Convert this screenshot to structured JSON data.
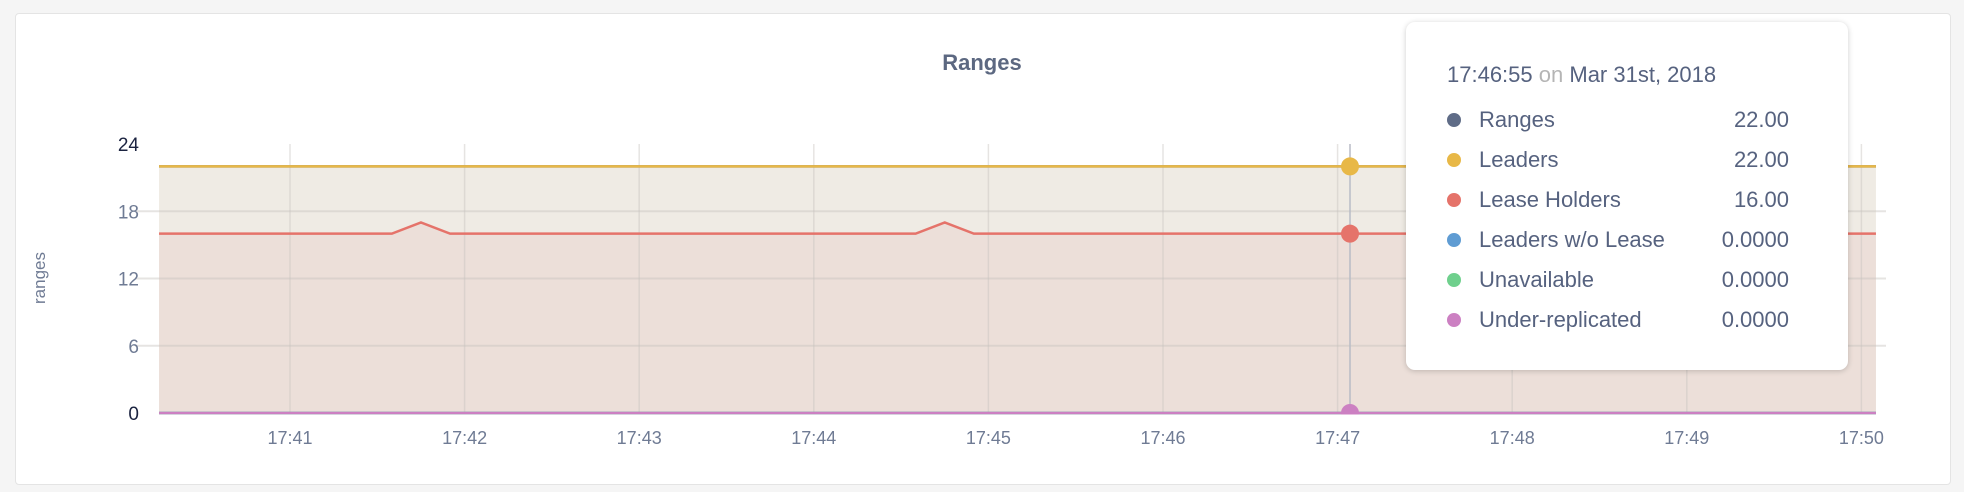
{
  "chart_data": {
    "type": "area",
    "title": "Ranges",
    "ylabel": "ranges",
    "xlabel": "",
    "ylim": [
      0,
      24
    ],
    "yticks": [
      "0",
      "6",
      "12",
      "18",
      "24"
    ],
    "xticks": [
      "17:41",
      "17:42",
      "17:43",
      "17:44",
      "17:45",
      "17:46",
      "17:47",
      "17:48",
      "17:49",
      "17:50"
    ],
    "grid": true,
    "x": [
      "17:40:15",
      "17:40:25",
      "17:40:35",
      "17:40:45",
      "17:40:55",
      "17:41:05",
      "17:41:15",
      "17:41:25",
      "17:41:35",
      "17:41:45",
      "17:41:55",
      "17:42:05",
      "17:42:15",
      "17:42:25",
      "17:42:35",
      "17:42:45",
      "17:42:55",
      "17:43:05",
      "17:43:15",
      "17:43:25",
      "17:43:35",
      "17:43:45",
      "17:43:55",
      "17:44:05",
      "17:44:15",
      "17:44:25",
      "17:44:35",
      "17:44:45",
      "17:44:55",
      "17:45:05",
      "17:45:15",
      "17:45:25",
      "17:45:35",
      "17:45:45",
      "17:45:55",
      "17:46:05",
      "17:46:15",
      "17:46:25",
      "17:46:35",
      "17:46:45",
      "17:46:55",
      "17:47:05",
      "17:47:15",
      "17:47:25",
      "17:47:35",
      "17:47:45",
      "17:47:55",
      "17:48:05",
      "17:48:15",
      "17:48:25",
      "17:48:35",
      "17:48:45",
      "17:48:55",
      "17:49:05",
      "17:49:15",
      "17:49:25",
      "17:49:35",
      "17:49:45",
      "17:49:55",
      "17:50:05"
    ],
    "series": [
      {
        "name": "Ranges",
        "color": "#5f6c87",
        "fill": false,
        "values": [
          22,
          22,
          22,
          22,
          22,
          22,
          22,
          22,
          22,
          22,
          22,
          22,
          22,
          22,
          22,
          22,
          22,
          22,
          22,
          22,
          22,
          22,
          22,
          22,
          22,
          22,
          22,
          22,
          22,
          22,
          22,
          22,
          22,
          22,
          22,
          22,
          22,
          22,
          22,
          22,
          22,
          22,
          22,
          22,
          22,
          22,
          22,
          22,
          22,
          22,
          22,
          22,
          22,
          22,
          22,
          22,
          22,
          22,
          22,
          22
        ]
      },
      {
        "name": "Leaders",
        "color": "#e8b847",
        "fill": "#efebe4",
        "values": [
          22,
          22,
          22,
          22,
          22,
          22,
          22,
          22,
          22,
          22,
          22,
          22,
          22,
          22,
          22,
          22,
          22,
          22,
          22,
          22,
          22,
          22,
          22,
          22,
          22,
          22,
          22,
          22,
          22,
          22,
          22,
          22,
          22,
          22,
          22,
          22,
          22,
          22,
          22,
          22,
          22,
          22,
          22,
          22,
          22,
          22,
          22,
          22,
          22,
          22,
          22,
          22,
          22,
          22,
          22,
          22,
          22,
          22,
          22,
          22
        ]
      },
      {
        "name": "Lease Holders",
        "color": "#e5736a",
        "fill": "#ecdfd9",
        "values": [
          16,
          16,
          16,
          16,
          16,
          16,
          16,
          16,
          16,
          17,
          16,
          16,
          16,
          16,
          16,
          16,
          16,
          16,
          16,
          16,
          16,
          16,
          16,
          16,
          16,
          16,
          16,
          17,
          16,
          16,
          16,
          16,
          16,
          16,
          16,
          16,
          16,
          16,
          16,
          16,
          16,
          16,
          16,
          16,
          16,
          16,
          16,
          16,
          16,
          16,
          16,
          16,
          16,
          16,
          16,
          16,
          16,
          17,
          16,
          16
        ]
      },
      {
        "name": "Leaders w/o Lease",
        "color": "#5f9cd3",
        "fill": false,
        "values": [
          0,
          0,
          0,
          0,
          0,
          0,
          0,
          0,
          0,
          0,
          0,
          0,
          0,
          0,
          0,
          0,
          0,
          0,
          0,
          0,
          0,
          0,
          0,
          0,
          0,
          0,
          0,
          0,
          0,
          0,
          0,
          0,
          0,
          0,
          0,
          0,
          0,
          0,
          0,
          0,
          0,
          0,
          0,
          0,
          0,
          0,
          0,
          0,
          0,
          0,
          0,
          0,
          0,
          0,
          0,
          0,
          0,
          0,
          0,
          0
        ]
      },
      {
        "name": "Unavailable",
        "color": "#6fd08d",
        "fill": false,
        "values": [
          0,
          0,
          0,
          0,
          0,
          0,
          0,
          0,
          0,
          0,
          0,
          0,
          0,
          0,
          0,
          0,
          0,
          0,
          0,
          0,
          0,
          0,
          0,
          0,
          0,
          0,
          0,
          0,
          0,
          0,
          0,
          0,
          0,
          0,
          0,
          0,
          0,
          0,
          0,
          0,
          0,
          0,
          0,
          0,
          0,
          0,
          0,
          0,
          0,
          0,
          0,
          0,
          0,
          0,
          0,
          0,
          0,
          0,
          0,
          0
        ]
      },
      {
        "name": "Under-replicated",
        "color": "#cc80c2",
        "fill": false,
        "values": [
          0,
          0,
          0,
          0,
          0,
          0,
          0,
          0,
          0,
          0,
          0,
          0,
          0,
          0,
          0,
          0,
          0,
          0,
          0,
          0,
          0,
          0,
          0,
          0,
          0,
          0,
          0,
          0,
          0,
          0,
          0,
          0,
          0,
          0,
          0,
          0,
          0,
          0,
          0,
          0,
          0,
          0,
          0,
          0,
          0,
          0,
          0,
          0,
          0,
          0,
          0,
          0,
          0,
          0,
          0,
          0,
          0,
          0,
          0,
          0
        ]
      }
    ]
  },
  "tooltip": {
    "time": "17:46:55",
    "on": "on",
    "date": "Mar 31st, 2018",
    "rows": [
      {
        "label": "Ranges",
        "value": "22.00",
        "color": "#5f6c87"
      },
      {
        "label": "Leaders",
        "value": "22.00",
        "color": "#e8b847"
      },
      {
        "label": "Lease Holders",
        "value": "16.00",
        "color": "#e5736a"
      },
      {
        "label": "Leaders w/o Lease",
        "value": "0.0000",
        "color": "#5f9cd3"
      },
      {
        "label": "Unavailable",
        "value": "0.0000",
        "color": "#6fd08d"
      },
      {
        "label": "Under-replicated",
        "value": "0.0000",
        "color": "#cc80c2"
      }
    ]
  }
}
